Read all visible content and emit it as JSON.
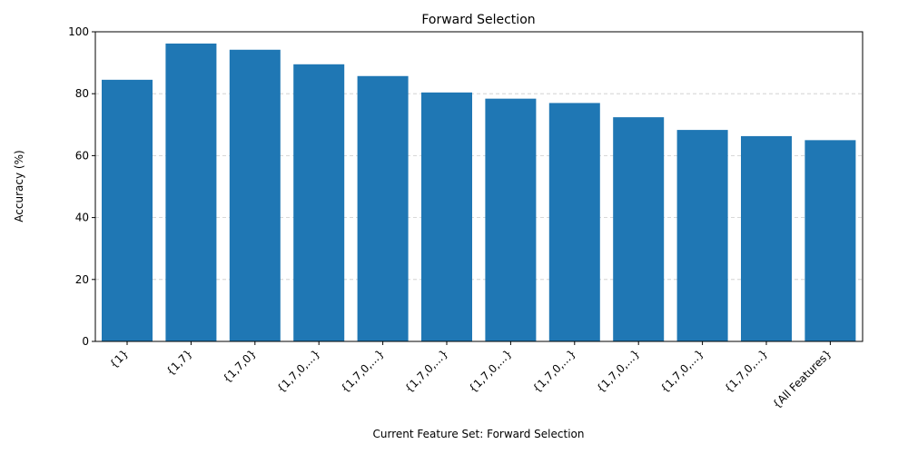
{
  "chart_data": {
    "type": "bar",
    "title": "Forward Selection",
    "xlabel": "Current Feature Set:  Forward Selection",
    "ylabel": "Accuracy (%)",
    "ylim": [
      0,
      100
    ],
    "yticks": [
      0,
      20,
      40,
      60,
      80,
      100
    ],
    "grid": "y-dashed",
    "bar_color": "#1f77b4",
    "categories": [
      "{1}",
      "{1,7}",
      "{1,7,0}",
      "{1,7,0,...}",
      "{1,7,0,...}",
      "{1,7,0,...}",
      "{1,7,0,...}",
      "{1,7,0,...}",
      "{1,7,0,...}",
      "{1,7,0,...}",
      "{1,7,0,...}",
      "{All Features}"
    ],
    "values": [
      84.5,
      96.2,
      94.2,
      89.5,
      85.7,
      80.4,
      78.4,
      77.0,
      72.4,
      68.3,
      66.3,
      65.0
    ]
  }
}
